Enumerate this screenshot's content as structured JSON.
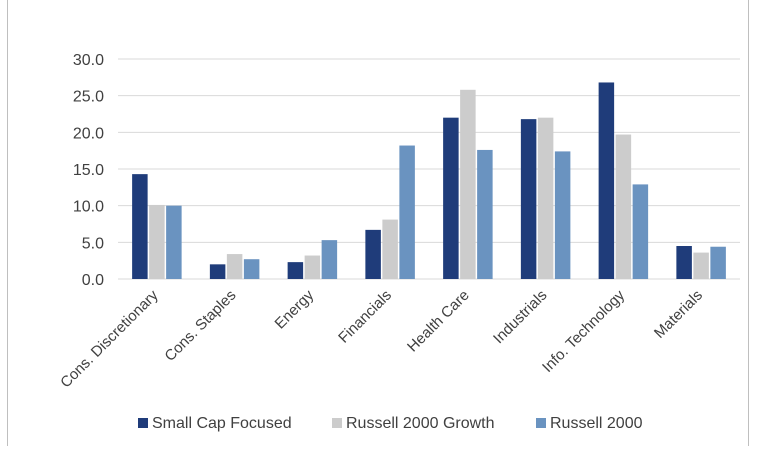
{
  "chart_data": {
    "type": "bar",
    "categories": [
      "Cons. Discretionary",
      "Cons. Staples",
      "Energy",
      "Financials",
      "Health Care",
      "Industrials",
      "Info. Technology",
      "Materials"
    ],
    "series": [
      {
        "name": "Small Cap Focused",
        "color": "#1f3c7a",
        "values": [
          14.3,
          2.0,
          2.3,
          6.7,
          22.0,
          21.8,
          26.8,
          4.5
        ]
      },
      {
        "name": "Russell 2000 Growth",
        "color": "#cccccc",
        "values": [
          10.1,
          3.4,
          3.2,
          8.1,
          25.8,
          22.0,
          19.7,
          3.6
        ]
      },
      {
        "name": "Russell 2000",
        "color": "#6a93c0",
        "values": [
          10.0,
          2.7,
          5.3,
          18.2,
          17.6,
          17.4,
          12.9,
          4.4
        ]
      }
    ],
    "yticks": [
      "0.0",
      "5.0",
      "10.0",
      "15.0",
      "20.0",
      "25.0",
      "30.0"
    ],
    "ylim": [
      0,
      30
    ],
    "grid": true,
    "legend_position": "bottom",
    "title": "",
    "xlabel": "",
    "ylabel": ""
  }
}
